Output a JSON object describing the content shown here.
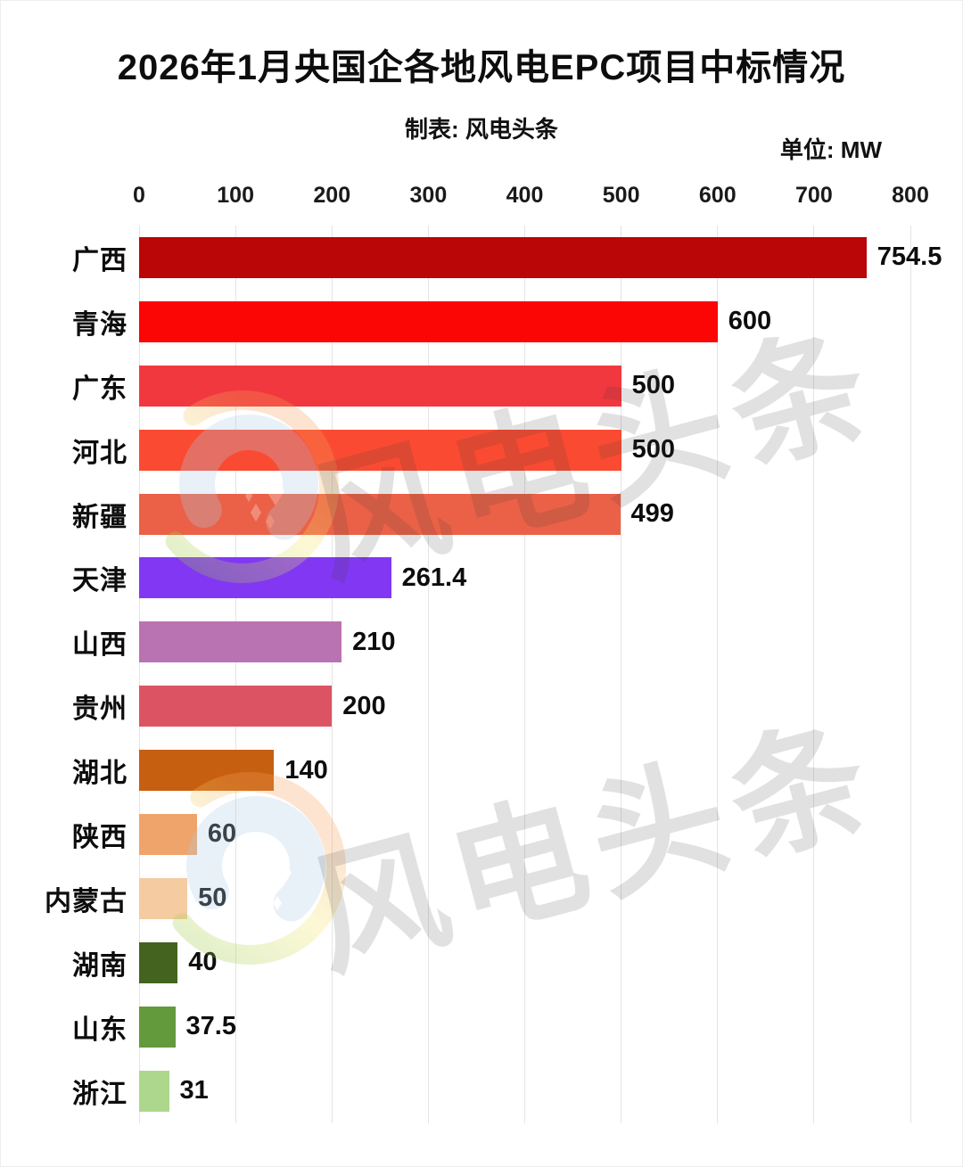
{
  "header": {
    "title": "2026年1月央国企各地风电EPC项目中标情况",
    "subtitle": "制表: 风电头条",
    "unit_label": "单位: MW"
  },
  "watermark": {
    "text": "风电头条",
    "text_color": "#3c3c3c",
    "logo_colors": {
      "green": "#8CC63F",
      "yellow": "#F6E96B",
      "orange": "#F5A05A",
      "blue": "#AECDE9",
      "sparkle": "#FFFFFF"
    }
  },
  "chart_data": {
    "type": "bar",
    "orientation": "horizontal",
    "title": "2026年1月央国企各地风电EPC项目中标情况",
    "source_note": "制表: 风电头条",
    "unit": "MW",
    "categories": [
      "广西",
      "青海",
      "广东",
      "河北",
      "新疆",
      "天津",
      "山西",
      "贵州",
      "湖北",
      "陕西",
      "内蒙古",
      "湖南",
      "山东",
      "浙江"
    ],
    "values": [
      754.5,
      600,
      500,
      500,
      499,
      261.4,
      210,
      200,
      140,
      60,
      50,
      40,
      37.5,
      31
    ],
    "bar_colors": [
      "#BA0606",
      "#FB0505",
      "#F2383F",
      "#FA4B32",
      "#EB6147",
      "#8238F2",
      "#B973B3",
      "#DC5463",
      "#C75F10",
      "#EFA46B",
      "#F5CBA2",
      "#44631F",
      "#639A3C",
      "#AED78E"
    ],
    "xlim": [
      0,
      800
    ],
    "x_ticks": [
      0,
      100,
      200,
      300,
      400,
      500,
      600,
      700,
      800
    ],
    "axis_position": "top",
    "grid": true,
    "gridline_color": "#e4e4e4",
    "value_label_position": "end-of-bar"
  }
}
